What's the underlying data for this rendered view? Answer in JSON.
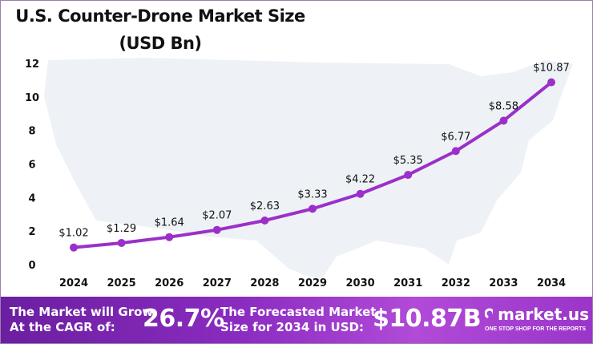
{
  "chart_data": {
    "type": "line",
    "title": "U.S. Counter-Drone Market Size",
    "subtitle": "(USD Bn)",
    "categories": [
      "2024",
      "2025",
      "2026",
      "2027",
      "2028",
      "2029",
      "2030",
      "2031",
      "2032",
      "2033",
      "2034"
    ],
    "values": [
      1.02,
      1.29,
      1.64,
      2.07,
      2.63,
      3.33,
      4.22,
      5.35,
      6.77,
      8.58,
      10.87
    ],
    "data_labels": [
      "$1.02",
      "$1.29",
      "$1.64",
      "$2.07",
      "$2.63",
      "$3.33",
      "$4.22",
      "$5.35",
      "$6.77",
      "$8.58",
      "$10.87"
    ],
    "ylim": [
      0,
      12
    ],
    "yticks": [
      0,
      2,
      4,
      6,
      8,
      10,
      12
    ],
    "grid": false,
    "line_color": "#9b30c8",
    "background": "US map silhouette"
  },
  "banner": {
    "cagr_label_1": "The Market will Grow",
    "cagr_label_2": "At the CAGR of:",
    "cagr_value": "26.7%",
    "forecast_label_1": "The Forecasted Market",
    "forecast_label_2": "Size for 2034 in USD:",
    "forecast_value": "$10.87B",
    "logo_name": "market.us",
    "logo_tagline": "ONE STOP SHOP FOR THE REPORTS"
  }
}
